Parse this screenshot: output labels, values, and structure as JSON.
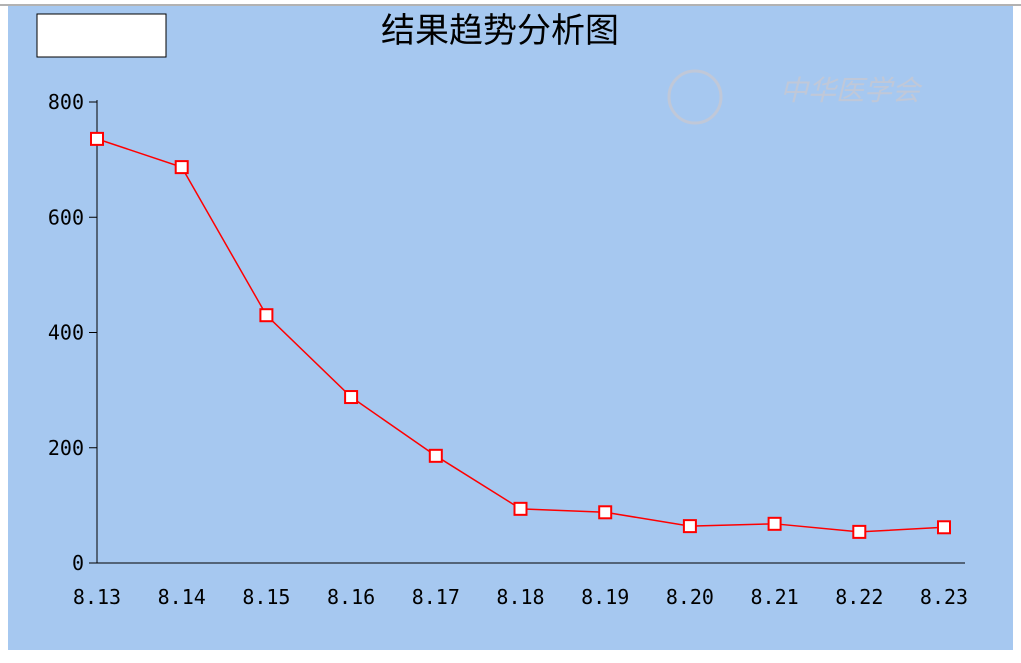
{
  "chart_data": {
    "type": "line",
    "title": "结果趋势分析图",
    "watermark": "中华医学会",
    "categories": [
      "8.13",
      "8.14",
      "8.15",
      "8.16",
      "8.17",
      "8.18",
      "8.19",
      "8.20",
      "8.21",
      "8.22",
      "8.23"
    ],
    "values": [
      736,
      687,
      430,
      288,
      186,
      94,
      88,
      64,
      68,
      54,
      62
    ],
    "color": "#ff0000",
    "ylim": [
      0,
      800
    ],
    "yticks": [
      0,
      200,
      400,
      600,
      800
    ]
  }
}
